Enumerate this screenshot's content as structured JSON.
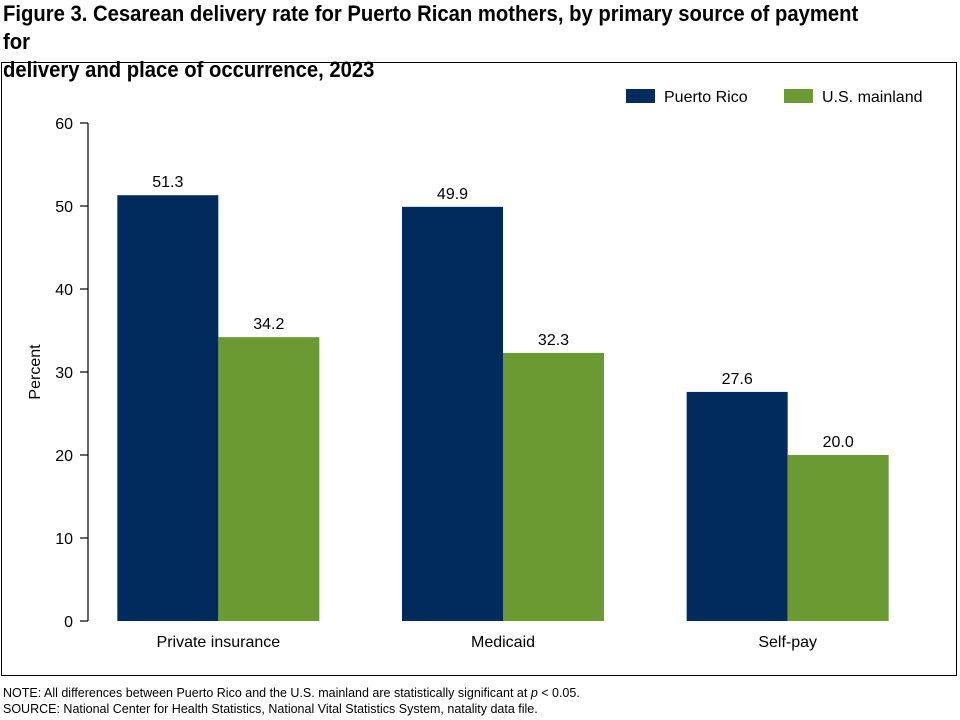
{
  "title": {
    "line1": "Figure 3. Cesarean delivery rate for Puerto Rican mothers, by primary source of payment for",
    "line2": "delivery and place of occurrence, 2023"
  },
  "notes": {
    "note_prefix": "NOTE: All differences between Puerto Rico and the U.S. mainland are statistically significant at ",
    "note_p": "p",
    "note_suffix": " < 0.05.",
    "source": "SOURCE: National Center for Health Statistics, National Vital Statistics System, natality data file."
  },
  "chart_data": {
    "type": "bar",
    "categories": [
      "Private insurance",
      "Medicaid",
      "Self-pay"
    ],
    "series": [
      {
        "name": "Puerto Rico",
        "values": [
          51.3,
          49.9,
          27.6
        ],
        "labels": [
          "51.3",
          "49.9",
          "27.6"
        ],
        "color": "#002b5c"
      },
      {
        "name": "U.S. mainland",
        "values": [
          34.2,
          32.3,
          20.0
        ],
        "labels": [
          "34.2",
          "32.3",
          "20.0"
        ],
        "color": "#6a9a31"
      }
    ],
    "ylabel": "Percent",
    "xlabel": "",
    "ylim": [
      0,
      60
    ],
    "yticks": [
      0,
      10,
      20,
      30,
      40,
      50,
      60
    ],
    "legend_position": "top-right",
    "grid": false
  }
}
